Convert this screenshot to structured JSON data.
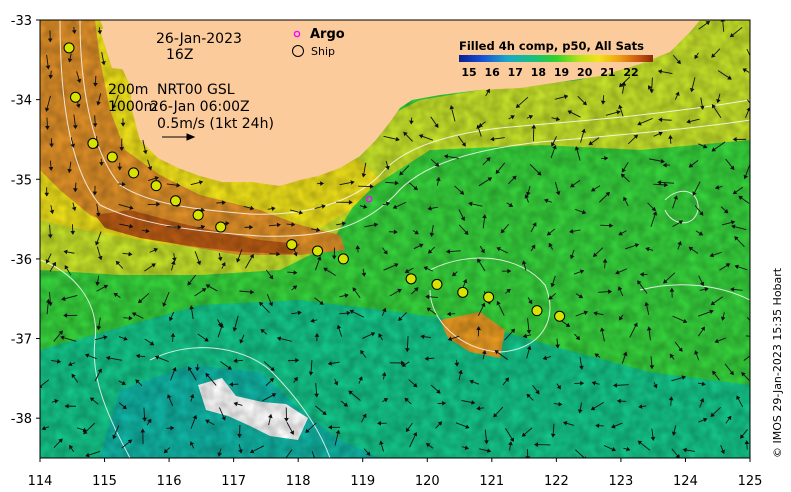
{
  "map": {
    "date_line1": "26-Jan-2023",
    "date_line2": "16Z",
    "depth_label_200": "200m",
    "depth_label_1000": "1000m",
    "product_label": "NRT00 GSL",
    "product_time": "26-Jan 06:00Z",
    "scale_label": "0.5m/s (1kt 24h)",
    "legend_argo": "Argo",
    "legend_ship": "Ship",
    "colorbar_title": "Filled 4h comp, p50, All Sats",
    "colorbar_ticks": [
      "15",
      "16",
      "17",
      "18",
      "19",
      "20",
      "21",
      "22"
    ],
    "credit": "© IMOS 29-Jan-2023 15:35 Hobart",
    "lon_ticks": [
      "114",
      "115",
      "116",
      "117",
      "118",
      "119",
      "120",
      "121",
      "122",
      "123",
      "124",
      "125"
    ],
    "lat_ticks": [
      "-33",
      "-34",
      "-35",
      "-36",
      "-37",
      "-38"
    ],
    "lon_range": [
      114,
      125
    ],
    "lat_range": [
      -38.5,
      -33
    ],
    "colors": {
      "land": "#fccb9b",
      "ship_marker": "#d6e400",
      "argo_marker": "#ff00ff",
      "bathy_contour": "#ffffff"
    },
    "ship_track": [
      [
        114.45,
        -33.35
      ],
      [
        114.55,
        -33.97
      ],
      [
        114.82,
        -34.55
      ],
      [
        115.12,
        -34.72
      ],
      [
        115.45,
        -34.92
      ],
      [
        115.8,
        -35.08
      ],
      [
        116.1,
        -35.27
      ],
      [
        116.45,
        -35.45
      ],
      [
        116.8,
        -35.6
      ],
      [
        117.9,
        -35.82
      ],
      [
        118.3,
        -35.9
      ],
      [
        118.7,
        -36.0
      ],
      [
        119.75,
        -36.25
      ],
      [
        120.15,
        -36.32
      ],
      [
        120.55,
        -36.42
      ],
      [
        120.95,
        -36.48
      ],
      [
        121.7,
        -36.65
      ],
      [
        122.05,
        -36.72
      ]
    ],
    "argo_floats": [
      [
        119.1,
        -35.25
      ]
    ]
  }
}
